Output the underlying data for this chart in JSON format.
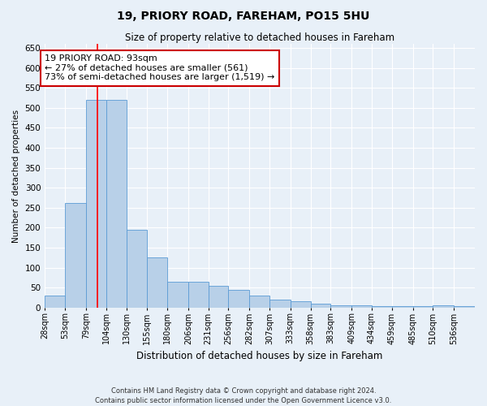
{
  "title1": "19, PRIORY ROAD, FAREHAM, PO15 5HU",
  "title2": "Size of property relative to detached houses in Fareham",
  "xlabel": "Distribution of detached houses by size in Fareham",
  "ylabel": "Number of detached properties",
  "footer1": "Contains HM Land Registry data © Crown copyright and database right 2024.",
  "footer2": "Contains public sector information licensed under the Open Government Licence v3.0.",
  "annotation_line1": "19 PRIORY ROAD: 93sqm",
  "annotation_line2": "← 27% of detached houses are smaller (561)",
  "annotation_line3": "73% of semi-detached houses are larger (1,519) →",
  "bar_color": "#b8d0e8",
  "bar_edge_color": "#5b9bd5",
  "red_line_x": 93,
  "categories": [
    "28sqm",
    "53sqm",
    "79sqm",
    "104sqm",
    "130sqm",
    "155sqm",
    "180sqm",
    "206sqm",
    "231sqm",
    "256sqm",
    "282sqm",
    "307sqm",
    "333sqm",
    "358sqm",
    "383sqm",
    "409sqm",
    "434sqm",
    "459sqm",
    "485sqm",
    "510sqm",
    "536sqm"
  ],
  "bin_edges": [
    28,
    53,
    79,
    104,
    130,
    155,
    180,
    206,
    231,
    256,
    282,
    307,
    333,
    358,
    383,
    409,
    434,
    459,
    485,
    510,
    536,
    562
  ],
  "values": [
    30,
    261,
    520,
    520,
    195,
    125,
    65,
    65,
    55,
    45,
    30,
    20,
    15,
    10,
    5,
    5,
    3,
    3,
    3,
    5,
    3
  ],
  "ylim": [
    0,
    660
  ],
  "yticks": [
    0,
    50,
    100,
    150,
    200,
    250,
    300,
    350,
    400,
    450,
    500,
    550,
    600,
    650
  ],
  "bg_color": "#e8f0f8",
  "grid_color": "#ffffff",
  "annotation_box_color": "#ffffff",
  "annotation_box_edge": "#cc0000"
}
